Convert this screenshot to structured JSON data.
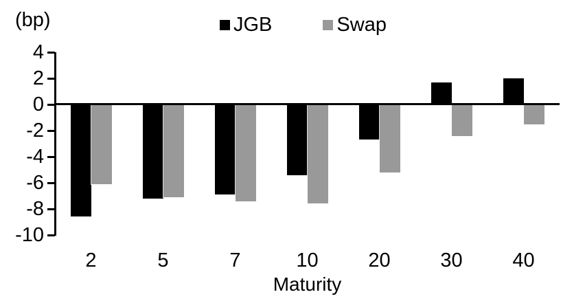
{
  "chart_data": {
    "type": "bar",
    "title": "",
    "unit_label": "(bp)",
    "xlabel": "Maturity",
    "ylabel": "",
    "categories": [
      "2",
      "5",
      "7",
      "10",
      "20",
      "30",
      "40"
    ],
    "series": [
      {
        "name": "JGB",
        "color": "#000000",
        "values": [
          -8.6,
          -7.2,
          -6.9,
          -5.4,
          -2.7,
          1.7,
          2.0
        ]
      },
      {
        "name": "Swap",
        "color": "#999999",
        "values": [
          -6.1,
          -7.1,
          -7.4,
          -7.6,
          -5.2,
          -2.4,
          -1.5
        ]
      }
    ],
    "ylim": [
      -10,
      4
    ],
    "yticks": [
      4,
      2,
      0,
      -2,
      -4,
      -6,
      -8,
      -10
    ],
    "legend_position": "top-center",
    "grid": false,
    "zero_line": true,
    "background_color": "#ffffff",
    "text_color": "#000000"
  }
}
